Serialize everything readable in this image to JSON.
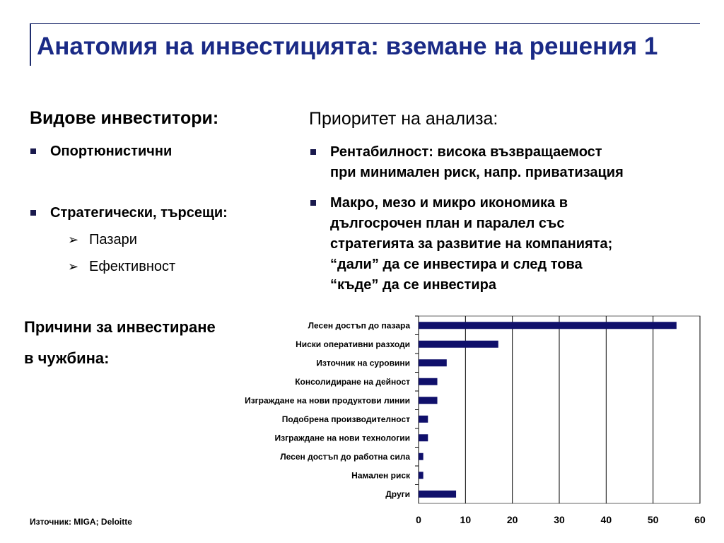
{
  "title": "Анатомия на инвестицията: вземане на решения 1",
  "left": {
    "heading": "Видове инвеститори:",
    "bullets": [
      "Опортюнистични",
      "Стратегически, търсещи:"
    ],
    "subitems": [
      "Пазари",
      "Ефективност"
    ]
  },
  "right": {
    "heading": "Приоритет на анализа:",
    "bullets": [
      [
        "Рентабилност: висока възвращаемост",
        "при минимален риск, напр. приватизация"
      ],
      [
        "Макро, мезо и микро икономика в",
        "дългосрочен план и паралел със",
        "стратегията за развитие на компанията;",
        "“дали” да се инвестира и след това",
        "“къде” да се инвестира"
      ]
    ]
  },
  "reasons": {
    "line1": "Причини за инвестиране",
    "line2": "в чужбина:"
  },
  "source": "Източник: MIGA; Deloitte",
  "colors": {
    "title": "#1a2a86",
    "bar": "#10106b",
    "grid": "#000000"
  },
  "chart_data": {
    "type": "bar",
    "orientation": "horizontal",
    "categories": [
      "Лесен достъп до пазара",
      "Ниски оперативни разходи",
      "Източник на суровини",
      "Консолидиране на дейност",
      "Изграждане на нови продуктови линии",
      "Подобрена производителност",
      "Изграждане на нови технологии",
      "Лесен достъп до работна сила",
      "Намален риск",
      "Други"
    ],
    "values": [
      55,
      17,
      6,
      4,
      4,
      2,
      2,
      1,
      1,
      8
    ],
    "xlim": [
      0,
      60
    ],
    "xticks": [
      "0",
      "10",
      "20",
      "30",
      "40",
      "50",
      "60"
    ],
    "grid": true,
    "legend": "none"
  }
}
